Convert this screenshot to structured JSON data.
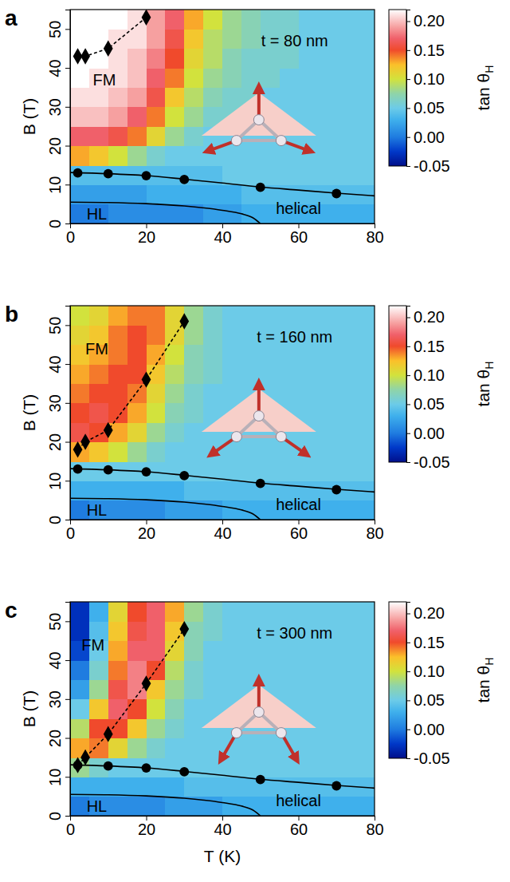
{
  "chart_data": [
    {
      "type": "heatmap",
      "panel": "a",
      "ylabel": "B (T)",
      "annotations": [
        {
          "text": "t = 80 nm",
          "x": 59,
          "y": 47
        },
        {
          "text": "FM",
          "x": 9,
          "y": 37
        },
        {
          "text": "helical",
          "x": 60,
          "y": 4
        },
        {
          "text": "HL",
          "x": 7,
          "y": 2.4
        }
      ],
      "xlim": [
        0,
        80
      ],
      "ylim": [
        0,
        55
      ],
      "xticks": [
        0,
        20,
        40,
        60,
        80
      ],
      "yticks": [
        0,
        10,
        20,
        30,
        40,
        50
      ],
      "x": [
        2.5,
        7.5,
        12.5,
        17.5,
        22.5,
        27.5,
        32.5,
        37.5,
        42.5,
        47.5,
        52.5,
        57.5,
        62.5,
        67.5,
        72.5,
        77.5
      ],
      "y": [
        2.5,
        7.5,
        12.5,
        17.5,
        22.5,
        27.5,
        32.5,
        37.5,
        42.5,
        47.5,
        52.5
      ],
      "cells": [
        [
          0.0,
          0.0,
          0.01,
          0.01,
          0.01,
          0.01,
          0.01,
          0.02,
          0.02,
          0.03,
          0.03,
          0.03,
          0.03,
          0.03,
          0.03,
          0.03
        ],
        [
          0.02,
          0.02,
          0.02,
          0.02,
          0.03,
          0.03,
          0.03,
          0.03,
          0.03,
          0.04,
          0.04,
          0.04,
          0.04,
          0.04,
          0.04,
          0.04
        ],
        [
          0.04,
          0.04,
          0.04,
          0.04,
          0.04,
          0.04,
          0.04,
          0.04,
          0.05,
          0.05,
          0.05,
          0.05,
          0.05,
          0.05,
          0.05,
          0.05
        ],
        [
          0.13,
          0.12,
          0.1,
          0.08,
          0.06,
          0.05,
          0.05,
          0.05,
          0.05,
          0.05,
          0.05,
          0.05,
          0.05,
          0.05,
          0.05,
          0.05
        ],
        [
          0.17,
          0.17,
          0.16,
          0.14,
          0.11,
          0.08,
          0.06,
          0.05,
          0.05,
          0.05,
          0.05,
          0.05,
          0.05,
          0.05,
          0.05,
          0.05
        ],
        [
          0.2,
          0.2,
          0.19,
          0.17,
          0.14,
          0.1,
          0.08,
          0.06,
          0.06,
          0.05,
          0.05,
          0.05,
          0.05,
          0.05,
          0.05,
          0.05
        ],
        [
          0.21,
          0.21,
          0.2,
          0.19,
          0.16,
          0.12,
          0.09,
          0.07,
          0.06,
          0.06,
          0.05,
          0.05,
          0.05,
          0.05,
          0.05,
          0.05
        ],
        [
          0.22,
          0.21,
          0.21,
          0.2,
          0.17,
          0.14,
          0.1,
          0.08,
          0.07,
          0.06,
          0.06,
          0.05,
          0.05,
          0.05,
          0.05,
          0.05
        ],
        [
          0.22,
          0.22,
          0.21,
          0.2,
          0.18,
          0.15,
          0.11,
          0.09,
          0.07,
          0.06,
          0.06,
          0.06,
          0.05,
          0.05,
          0.05,
          0.05
        ],
        [
          0.22,
          0.22,
          0.21,
          0.21,
          0.19,
          0.16,
          0.12,
          0.09,
          0.08,
          0.07,
          0.06,
          0.06,
          0.05,
          0.05,
          0.05,
          0.05
        ],
        [
          0.22,
          0.22,
          0.22,
          0.21,
          0.19,
          0.17,
          0.13,
          0.1,
          0.08,
          0.07,
          0.06,
          0.06,
          0.05,
          0.05,
          0.05,
          0.05
        ]
      ],
      "colorbar": {
        "range": [
          -0.05,
          0.22
        ],
        "ticks": [
          -0.05,
          {
            "value": 0,
            "label": "0.00"
          },
          0.05,
          {
            "value": 0.1,
            "label": "0.10"
          },
          0.15,
          {
            "value": 0.2,
            "label": "0.20"
          }
        ],
        "label": "tan θH"
      },
      "series": [
        {
          "type": "line",
          "marker": "none",
          "line_style": "solid",
          "color": "#000000",
          "x": [
            0,
            10,
            20,
            30,
            40,
            50,
            60,
            70,
            80
          ],
          "values": [
            13.1,
            12.8,
            12.3,
            11.4,
            10.4,
            9.4,
            8.6,
            7.8,
            7.1
          ]
        },
        {
          "type": "scatter",
          "marker": "circle",
          "line_style": "none",
          "color": "#000000",
          "x": [
            2,
            10,
            20,
            30,
            50,
            70
          ],
          "values": [
            13,
            12.8,
            12.3,
            11.3,
            9.3,
            7.7
          ]
        },
        {
          "type": "line",
          "marker": "none",
          "line_style": "solid",
          "color": "#000000",
          "x": [
            0,
            10,
            20,
            30,
            40,
            45,
            48,
            50
          ],
          "values": [
            5.5,
            5.4,
            5.1,
            4.5,
            3.4,
            2.5,
            1.5,
            0
          ]
        },
        {
          "type": "line",
          "marker": "diamond",
          "line_style": "dashed",
          "color": "#000000",
          "x": [
            2,
            4,
            10,
            20
          ],
          "values": [
            43,
            43,
            45,
            53
          ]
        }
      ]
    },
    {
      "type": "heatmap",
      "panel": "b",
      "ylabel": "B (T)",
      "annotations": [
        {
          "text": "t = 160 nm",
          "x": 59,
          "y": 47
        },
        {
          "text": "FM",
          "x": 7,
          "y": 44
        },
        {
          "text": "helical",
          "x": 60,
          "y": 4
        },
        {
          "text": "HL",
          "x": 7,
          "y": 2.4
        }
      ],
      "xlim": [
        0,
        80
      ],
      "ylim": [
        0,
        55
      ],
      "xticks": [
        0,
        20,
        40,
        60,
        80
      ],
      "yticks": [
        0,
        10,
        20,
        30,
        40,
        50
      ],
      "x": [
        2.5,
        7.5,
        12.5,
        17.5,
        22.5,
        27.5,
        32.5,
        37.5,
        42.5,
        47.5,
        52.5,
        57.5,
        62.5,
        67.5,
        72.5,
        77.5
      ],
      "y": [
        2.5,
        7.5,
        12.5,
        17.5,
        22.5,
        27.5,
        32.5,
        37.5,
        42.5,
        47.5,
        52.5
      ],
      "cells": [
        [
          0.0,
          0.01,
          0.01,
          0.01,
          0.01,
          0.02,
          0.02,
          0.02,
          0.03,
          0.03,
          0.03,
          0.03,
          0.03,
          0.03,
          0.03,
          0.03
        ],
        [
          0.03,
          0.03,
          0.03,
          0.03,
          0.03,
          0.03,
          0.04,
          0.04,
          0.04,
          0.04,
          0.04,
          0.04,
          0.04,
          0.04,
          0.04,
          0.04
        ],
        [
          0.05,
          0.05,
          0.05,
          0.05,
          0.05,
          0.05,
          0.05,
          0.05,
          0.05,
          0.05,
          0.05,
          0.05,
          0.05,
          0.05,
          0.05,
          0.05
        ],
        [
          0.13,
          0.12,
          0.1,
          0.08,
          0.06,
          0.05,
          0.05,
          0.05,
          0.05,
          0.05,
          0.05,
          0.05,
          0.05,
          0.05,
          0.05,
          0.05
        ],
        [
          0.16,
          0.15,
          0.13,
          0.11,
          0.08,
          0.06,
          0.05,
          0.05,
          0.05,
          0.05,
          0.05,
          0.05,
          0.05,
          0.05,
          0.05,
          0.05
        ],
        [
          0.15,
          0.16,
          0.15,
          0.13,
          0.1,
          0.07,
          0.06,
          0.05,
          0.05,
          0.05,
          0.05,
          0.05,
          0.05,
          0.05,
          0.05,
          0.05
        ],
        [
          0.14,
          0.15,
          0.15,
          0.14,
          0.11,
          0.08,
          0.06,
          0.05,
          0.05,
          0.05,
          0.05,
          0.05,
          0.05,
          0.05,
          0.05,
          0.05
        ],
        [
          0.13,
          0.14,
          0.15,
          0.15,
          0.12,
          0.09,
          0.07,
          0.06,
          0.05,
          0.05,
          0.05,
          0.05,
          0.05,
          0.05,
          0.05,
          0.05
        ],
        [
          0.12,
          0.13,
          0.14,
          0.15,
          0.13,
          0.1,
          0.07,
          0.06,
          0.05,
          0.05,
          0.05,
          0.05,
          0.05,
          0.05,
          0.05,
          0.05
        ],
        [
          0.11,
          0.12,
          0.14,
          0.15,
          0.14,
          0.11,
          0.08,
          0.06,
          0.05,
          0.05,
          0.05,
          0.05,
          0.05,
          0.05,
          0.05,
          0.05
        ],
        [
          0.1,
          0.11,
          0.13,
          0.14,
          0.14,
          0.11,
          0.08,
          0.06,
          0.05,
          0.05,
          0.05,
          0.05,
          0.05,
          0.05,
          0.05,
          0.05
        ]
      ],
      "colorbar": {
        "range": [
          -0.05,
          0.22
        ],
        "ticks": [
          -0.05,
          {
            "value": 0,
            "label": "0.00"
          },
          0.05,
          {
            "value": 0.1,
            "label": "0.10"
          },
          0.15,
          {
            "value": 0.2,
            "label": "0.20"
          }
        ],
        "label": "tan θH"
      },
      "series": [
        {
          "type": "line",
          "marker": "none",
          "line_style": "solid",
          "color": "#000000",
          "x": [
            0,
            10,
            20,
            30,
            40,
            50,
            60,
            70,
            80
          ],
          "values": [
            13.1,
            12.8,
            12.3,
            11.4,
            10.4,
            9.4,
            8.6,
            7.8,
            7.1
          ]
        },
        {
          "type": "scatter",
          "marker": "circle",
          "line_style": "none",
          "color": "#000000",
          "x": [
            2,
            10,
            20,
            30,
            50,
            70
          ],
          "values": [
            13,
            12.8,
            12.3,
            11.3,
            9.3,
            7.7
          ]
        },
        {
          "type": "line",
          "marker": "none",
          "line_style": "solid",
          "color": "#000000",
          "x": [
            0,
            10,
            20,
            30,
            40,
            45,
            48,
            50
          ],
          "values": [
            5.5,
            5.4,
            5.1,
            4.5,
            3.4,
            2.5,
            1.5,
            0
          ]
        },
        {
          "type": "line",
          "marker": "diamond",
          "line_style": "dashed",
          "color": "#000000",
          "x": [
            2,
            4,
            10,
            20,
            30
          ],
          "values": [
            18,
            20,
            23,
            36,
            51
          ]
        }
      ]
    },
    {
      "type": "heatmap",
      "panel": "c",
      "ylabel": "B (T)",
      "xlabel": "T (K)",
      "annotations": [
        {
          "text": "t = 300 nm",
          "x": 59,
          "y": 47
        },
        {
          "text": "FM",
          "x": 6,
          "y": 44
        },
        {
          "text": "helical",
          "x": 60,
          "y": 4
        },
        {
          "text": "HL",
          "x": 7,
          "y": 2.4
        }
      ],
      "xlim": [
        0,
        80
      ],
      "ylim": [
        0,
        55
      ],
      "xticks": [
        0,
        20,
        40,
        60,
        80
      ],
      "yticks": [
        0,
        10,
        20,
        30,
        40,
        50
      ],
      "x": [
        2.5,
        7.5,
        12.5,
        17.5,
        22.5,
        27.5,
        32.5,
        37.5,
        42.5,
        47.5,
        52.5,
        57.5,
        62.5,
        67.5,
        72.5,
        77.5
      ],
      "y": [
        2.5,
        7.5,
        12.5,
        17.5,
        22.5,
        27.5,
        32.5,
        37.5,
        42.5,
        47.5,
        52.5
      ],
      "cells": [
        [
          0.0,
          0.01,
          0.01,
          0.01,
          0.01,
          0.02,
          0.02,
          0.02,
          0.03,
          0.03,
          0.03,
          0.03,
          0.03,
          0.03,
          0.03,
          0.03
        ],
        [
          0.03,
          0.03,
          0.03,
          0.03,
          0.03,
          0.03,
          0.04,
          0.04,
          0.04,
          0.04,
          0.04,
          0.04,
          0.04,
          0.04,
          0.04,
          0.04
        ],
        [
          0.08,
          0.06,
          0.05,
          0.05,
          0.05,
          0.05,
          0.05,
          0.05,
          0.05,
          0.05,
          0.05,
          0.05,
          0.05,
          0.05,
          0.05,
          0.05
        ],
        [
          0.13,
          0.14,
          0.11,
          0.08,
          0.06,
          0.05,
          0.05,
          0.05,
          0.05,
          0.05,
          0.05,
          0.05,
          0.05,
          0.05,
          0.05,
          0.05
        ],
        [
          0.09,
          0.15,
          0.15,
          0.12,
          0.08,
          0.06,
          0.05,
          0.05,
          0.05,
          0.05,
          0.05,
          0.05,
          0.05,
          0.05,
          0.05,
          0.05
        ],
        [
          0.05,
          0.12,
          0.17,
          0.15,
          0.1,
          0.07,
          0.05,
          0.05,
          0.05,
          0.05,
          0.05,
          0.05,
          0.05,
          0.05,
          0.05,
          0.05
        ],
        [
          0.02,
          0.08,
          0.16,
          0.18,
          0.12,
          0.08,
          0.06,
          0.05,
          0.05,
          0.05,
          0.05,
          0.05,
          0.05,
          0.05,
          0.05,
          0.05
        ],
        [
          0.0,
          0.06,
          0.14,
          0.18,
          0.15,
          0.09,
          0.06,
          0.05,
          0.05,
          0.05,
          0.05,
          0.05,
          0.05,
          0.05,
          0.05,
          0.05
        ],
        [
          -0.02,
          0.05,
          0.13,
          0.17,
          0.17,
          0.11,
          0.07,
          0.05,
          0.05,
          0.05,
          0.05,
          0.05,
          0.05,
          0.05,
          0.05,
          0.05
        ],
        [
          -0.03,
          0.04,
          0.12,
          0.16,
          0.17,
          0.12,
          0.07,
          0.06,
          0.05,
          0.05,
          0.05,
          0.05,
          0.05,
          0.05,
          0.05,
          0.05
        ],
        [
          -0.03,
          0.03,
          0.11,
          0.15,
          0.17,
          0.13,
          0.08,
          0.06,
          0.05,
          0.05,
          0.05,
          0.05,
          0.05,
          0.05,
          0.05,
          0.05
        ]
      ],
      "colorbar": {
        "range": [
          -0.05,
          0.22
        ],
        "ticks": [
          -0.05,
          {
            "value": 0,
            "label": "0.00"
          },
          0.05,
          {
            "value": 0.1,
            "label": "0.10"
          },
          0.15,
          {
            "value": 0.2,
            "label": "0.20"
          }
        ],
        "label": "tan θH"
      },
      "series": [
        {
          "type": "line",
          "marker": "none",
          "line_style": "solid",
          "color": "#000000",
          "x": [
            0,
            10,
            20,
            30,
            40,
            50,
            60,
            70,
            80
          ],
          "values": [
            13.1,
            12.8,
            12.3,
            11.4,
            10.4,
            9.4,
            8.6,
            7.8,
            7.1
          ]
        },
        {
          "type": "scatter",
          "marker": "circle",
          "line_style": "none",
          "color": "#000000",
          "x": [
            2,
            10,
            20,
            30,
            50,
            70
          ],
          "values": [
            13,
            12.8,
            12.3,
            11.3,
            9.3,
            7.7
          ]
        },
        {
          "type": "line",
          "marker": "none",
          "line_style": "solid",
          "color": "#000000",
          "x": [
            0,
            10,
            20,
            30,
            40,
            45,
            48,
            50
          ],
          "values": [
            5.5,
            5.4,
            5.1,
            4.5,
            3.4,
            2.5,
            1.5,
            0
          ]
        },
        {
          "type": "line",
          "marker": "diamond",
          "line_style": "dashed",
          "color": "#000000",
          "x": [
            2,
            4,
            10,
            20,
            30
          ],
          "values": [
            13,
            15,
            21,
            34,
            48
          ]
        }
      ]
    }
  ]
}
